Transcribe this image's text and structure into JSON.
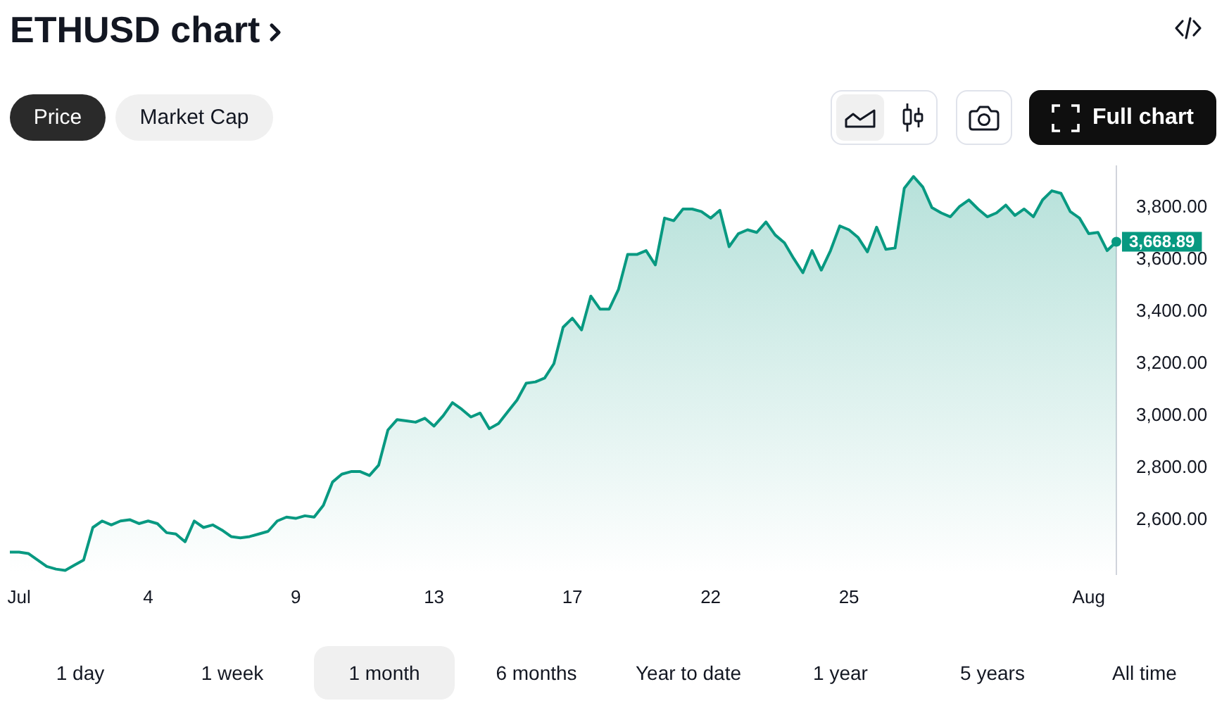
{
  "chart_data": {
    "type": "area",
    "title": "ETHUSD chart",
    "categories": [
      null,
      "Jul",
      null,
      null,
      null,
      null,
      null,
      null,
      null,
      null,
      null,
      null,
      null,
      null,
      null,
      "4",
      null,
      null,
      null,
      null,
      null,
      null,
      null,
      null,
      null,
      null,
      null,
      null,
      null,
      null,
      null,
      "9",
      null,
      null,
      null,
      null,
      null,
      null,
      null,
      null,
      null,
      null,
      null,
      null,
      null,
      null,
      "13",
      null,
      null,
      null,
      null,
      null,
      null,
      null,
      null,
      null,
      null,
      null,
      null,
      null,
      null,
      "17",
      null,
      null,
      null,
      null,
      null,
      null,
      null,
      null,
      null,
      null,
      null,
      null,
      null,
      null,
      "22",
      null,
      null,
      null,
      null,
      null,
      null,
      null,
      null,
      null,
      null,
      null,
      null,
      null,
      null,
      "25",
      null,
      null,
      null,
      null,
      null,
      null,
      null,
      null,
      null,
      null,
      null,
      null,
      null,
      null,
      null,
      null,
      null,
      null,
      null,
      null,
      null,
      null,
      null,
      null,
      null,
      "Aug",
      null,
      null,
      null
    ],
    "values": [
      2475,
      2475,
      2470,
      2445,
      2420,
      2410,
      2405,
      2425,
      2445,
      2570,
      2595,
      2580,
      2595,
      2600,
      2585,
      2595,
      2585,
      2550,
      2545,
      2515,
      2595,
      2570,
      2580,
      2560,
      2535,
      2530,
      2535,
      2545,
      2555,
      2595,
      2610,
      2605,
      2615,
      2610,
      2655,
      2745,
      2775,
      2785,
      2785,
      2770,
      2810,
      2945,
      2985,
      2980,
      2975,
      2990,
      2960,
      3000,
      3050,
      3025,
      2995,
      3010,
      2950,
      2970,
      3015,
      3060,
      3125,
      3130,
      3145,
      3200,
      3340,
      3375,
      3330,
      3460,
      3410,
      3410,
      3485,
      3620,
      3620,
      3635,
      3580,
      3760,
      3750,
      3795,
      3795,
      3785,
      3760,
      3790,
      3650,
      3700,
      3715,
      3705,
      3745,
      3695,
      3665,
      3605,
      3550,
      3635,
      3560,
      3635,
      3730,
      3715,
      3685,
      3630,
      3725,
      3640,
      3645,
      3875,
      3920,
      3880,
      3800,
      3780,
      3765,
      3805,
      3830,
      3795,
      3765,
      3780,
      3810,
      3770,
      3795,
      3765,
      3830,
      3865,
      3855,
      3785,
      3760,
      3700,
      3705,
      3635,
      3668.89
    ],
    "value_labels": [
      null,
      null,
      null,
      null,
      null,
      null,
      null,
      null,
      null,
      null,
      null,
      null,
      null,
      null,
      null,
      null,
      null,
      null,
      null,
      null,
      null,
      null,
      null,
      null,
      null,
      null,
      null,
      null,
      null,
      null,
      null,
      null,
      null,
      null,
      null,
      null,
      null,
      null,
      null,
      null,
      null,
      null,
      null,
      null,
      null,
      null,
      null,
      null,
      null,
      null,
      null,
      null,
      null,
      null,
      null,
      null,
      null,
      null,
      null,
      null,
      null,
      null,
      null,
      null,
      null,
      null,
      null,
      null,
      null,
      null,
      null,
      null,
      null,
      null,
      null,
      null,
      null,
      null,
      null,
      null,
      null,
      null,
      null,
      null,
      null,
      null,
      null,
      null,
      null,
      null,
      null,
      null,
      null,
      null,
      null,
      null,
      null,
      null,
      null,
      null,
      null,
      null,
      null,
      null,
      null,
      null,
      null,
      null,
      null,
      null,
      null,
      null,
      null,
      null,
      null,
      null,
      null,
      null,
      null,
      null,
      "3,668.89"
    ],
    "color": "#089981",
    "ylim": [
      2390,
      3960
    ],
    "yticks": [
      {
        "value": 2600,
        "label": "2,600.00"
      },
      {
        "value": 2800,
        "label": "2,800.00"
      },
      {
        "value": 3000,
        "label": "3,000.00"
      },
      {
        "value": 3200,
        "label": "3,200.00"
      },
      {
        "value": 3400,
        "label": "3,400.00"
      },
      {
        "value": 3600,
        "label": "3,600.00"
      },
      {
        "value": 3800,
        "label": "3,800.00"
      }
    ],
    "grid": false,
    "legend": false,
    "annotations": [
      "Price",
      "Market Cap",
      "Full chart",
      "1 day",
      "1 week",
      "1 month",
      "6 months",
      "Year to date",
      "1 year",
      "5 years",
      "All time"
    ]
  }
}
